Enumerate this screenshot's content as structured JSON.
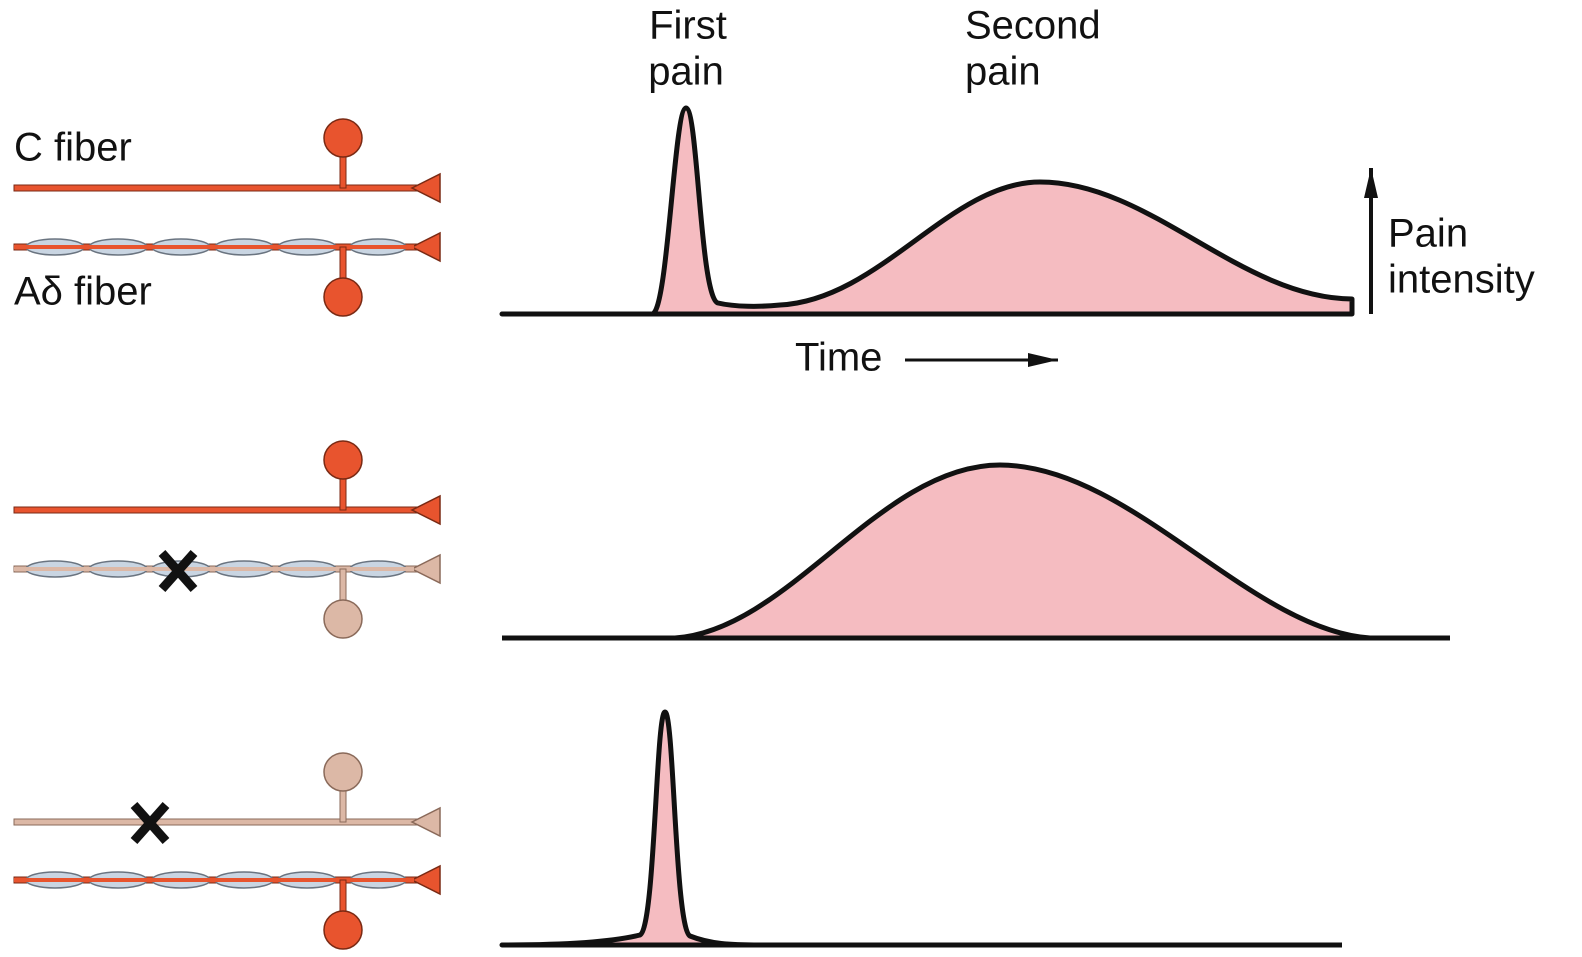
{
  "labels": {
    "c_fiber": "C fiber",
    "a_delta_fiber": "Aδ fiber",
    "first_pain": [
      "First",
      "pain"
    ],
    "second_pain": [
      "Second",
      "pain"
    ],
    "pain_intensity": [
      "Pain",
      "intensity"
    ],
    "time": "Time"
  }
}
